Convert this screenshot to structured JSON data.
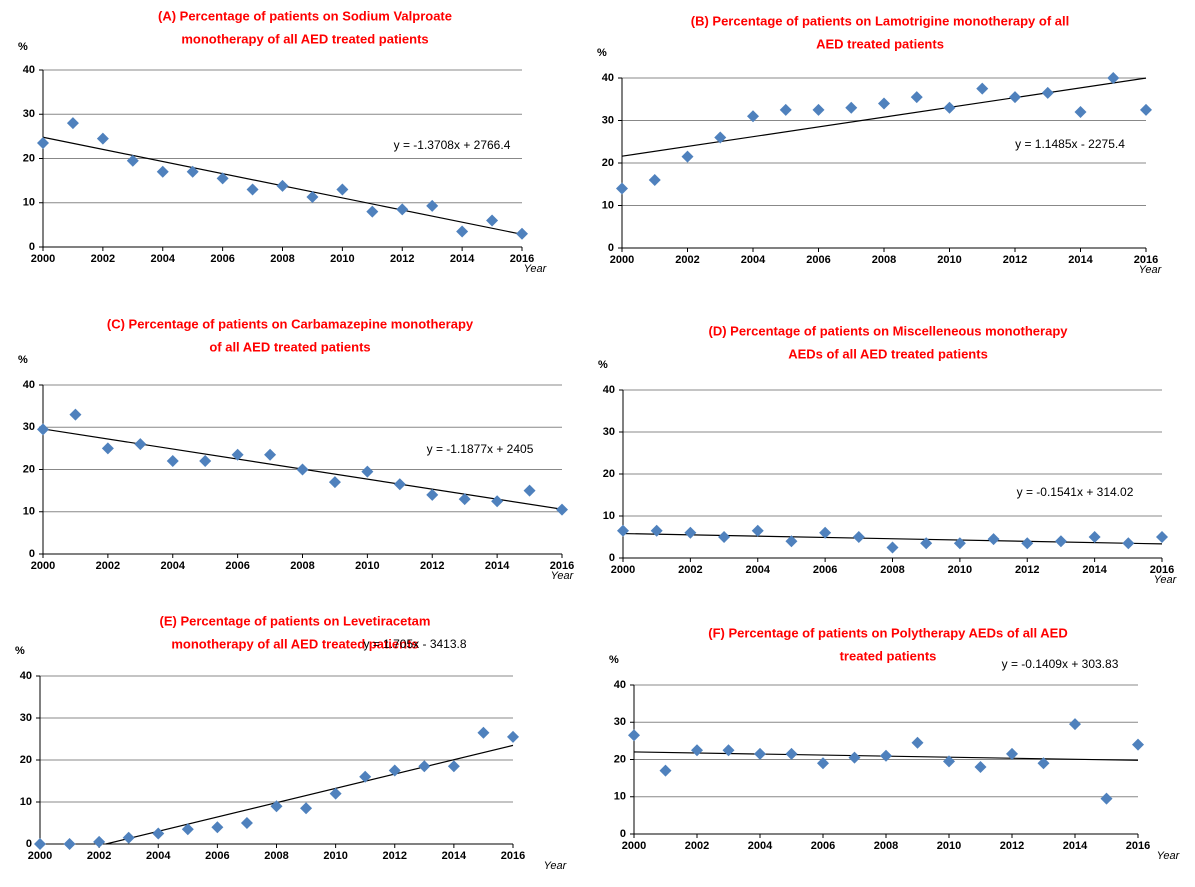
{
  "chart_data": [
    {
      "type": "scatter",
      "title": [
        "(A) Percentage  of patients on Sodium Valproate",
        "monotherapy of all AED treated patients"
      ],
      "y_label": "%",
      "x_label": "Year",
      "x": [
        2000,
        2001,
        2002,
        2003,
        2004,
        2005,
        2006,
        2007,
        2008,
        2009,
        2010,
        2011,
        2012,
        2013,
        2014,
        2015,
        2016
      ],
      "values": [
        23.5,
        28,
        24.5,
        19.5,
        17,
        17,
        15.5,
        13,
        13.8,
        11.3,
        13,
        8,
        8.5,
        9.3,
        3.5,
        6,
        3
      ],
      "color": "#4f81bd",
      "xlim": [
        2000,
        2016
      ],
      "ylim": [
        0,
        40
      ],
      "xticks": [
        2000,
        2002,
        2004,
        2006,
        2008,
        2010,
        2012,
        2014,
        2016
      ],
      "yticks": [
        0,
        10,
        20,
        30,
        40
      ],
      "grid": true,
      "trendline": {
        "slope": -1.3708,
        "intercept": 2766.4,
        "label": "y = -1.3708x + 2766.4",
        "color": "#000000"
      }
    },
    {
      "type": "scatter",
      "title": [
        "(B) Percentage of patients on Lamotrigine monotherapy of all",
        "AED treated patients"
      ],
      "y_label": "%",
      "x_label": "Year",
      "x": [
        2000,
        2001,
        2002,
        2003,
        2004,
        2005,
        2006,
        2007,
        2008,
        2009,
        2010,
        2011,
        2012,
        2013,
        2014,
        2015,
        2016
      ],
      "values": [
        14,
        16,
        21.5,
        26,
        31,
        32.5,
        32.5,
        33,
        34,
        35.5,
        33,
        37.5,
        35.5,
        36.5,
        32,
        40,
        32.5
      ],
      "color": "#4f81bd",
      "xlim": [
        2000,
        2016
      ],
      "ylim": [
        0,
        40
      ],
      "xticks": [
        2000,
        2002,
        2004,
        2006,
        2008,
        2010,
        2012,
        2014,
        2016
      ],
      "yticks": [
        0,
        10,
        20,
        30,
        40
      ],
      "grid": true,
      "trendline": {
        "slope": 1.1485,
        "intercept": -2275.4,
        "label": "y = 1.1485x - 2275.4",
        "color": "#000000"
      }
    },
    {
      "type": "scatter",
      "title": [
        "(C)  Percentage of patients on Carbamazepine monotherapy",
        "of all AED treated patients"
      ],
      "y_label": "%",
      "x_label": "Year",
      "x": [
        2000,
        2001,
        2002,
        2003,
        2004,
        2005,
        2006,
        2007,
        2008,
        2009,
        2010,
        2011,
        2012,
        2013,
        2014,
        2015,
        2016
      ],
      "values": [
        29.5,
        33,
        25,
        26,
        22,
        22,
        23.5,
        23.5,
        20,
        17,
        19.5,
        16.5,
        14,
        13,
        12.5,
        15,
        10.5
      ],
      "color": "#4f81bd",
      "xlim": [
        2000,
        2016
      ],
      "ylim": [
        0,
        40
      ],
      "xticks": [
        2000,
        2002,
        2004,
        2006,
        2008,
        2010,
        2012,
        2014,
        2016
      ],
      "yticks": [
        0,
        10,
        20,
        30,
        40
      ],
      "grid": true,
      "trendline": {
        "slope": -1.1877,
        "intercept": 2405,
        "label": "y = -1.1877x + 2405",
        "color": "#000000"
      }
    },
    {
      "type": "scatter",
      "title": [
        "(D) Percentage of patients on Miscelleneous monotherapy",
        "AEDs of all AED treated patients"
      ],
      "y_label": "%",
      "x_label": "Year",
      "x": [
        2000,
        2001,
        2002,
        2003,
        2004,
        2005,
        2006,
        2007,
        2008,
        2009,
        2010,
        2011,
        2012,
        2013,
        2014,
        2015,
        2016
      ],
      "values": [
        6.5,
        6.5,
        6,
        5,
        6.5,
        4,
        6,
        5,
        2.5,
        3.5,
        3.5,
        4.5,
        3.5,
        4,
        5,
        3.5,
        5
      ],
      "color": "#4f81bd",
      "xlim": [
        2000,
        2016
      ],
      "ylim": [
        0,
        40
      ],
      "xticks": [
        2000,
        2002,
        2004,
        2006,
        2008,
        2010,
        2012,
        2014,
        2016
      ],
      "yticks": [
        0,
        10,
        20,
        30,
        40
      ],
      "grid": true,
      "trendline": {
        "slope": -0.1541,
        "intercept": 314.02,
        "label": "y = -0.1541x + 314.02",
        "color": "#000000"
      }
    },
    {
      "type": "scatter",
      "title": [
        "(E) Percentage of patients on Levetiracetam",
        "monotherapy of all AED treated patients"
      ],
      "y_label": "%",
      "x_label": "Year",
      "x": [
        2000,
        2001,
        2002,
        2003,
        2004,
        2005,
        2006,
        2007,
        2008,
        2009,
        2010,
        2011,
        2012,
        2013,
        2014,
        2015,
        2016
      ],
      "values": [
        0,
        0,
        0.5,
        1.5,
        2.5,
        3.5,
        4,
        5,
        9,
        8.5,
        12,
        16,
        17.5,
        18.5,
        18.5,
        26.5,
        25.5
      ],
      "color": "#4f81bd",
      "xlim": [
        2000,
        2016
      ],
      "ylim": [
        0,
        40
      ],
      "xticks": [
        2000,
        2002,
        2004,
        2006,
        2008,
        2010,
        2012,
        2014,
        2016
      ],
      "yticks": [
        0,
        10,
        20,
        30,
        40
      ],
      "grid": true,
      "trendline": {
        "slope": 1.705,
        "intercept": -3413.8,
        "label": "y = 1.705x - 3413.8",
        "color": "#000000"
      }
    },
    {
      "type": "scatter",
      "title": [
        "(F) Percentage of patients on Polytherapy AEDs of all AED",
        "treated patients"
      ],
      "y_label": "%",
      "x_label": "Year",
      "x": [
        2000,
        2001,
        2002,
        2003,
        2004,
        2005,
        2006,
        2007,
        2008,
        2009,
        2010,
        2011,
        2012,
        2013,
        2014,
        2015,
        2016
      ],
      "values": [
        26.5,
        17,
        22.5,
        22.5,
        21.5,
        21.5,
        19,
        20.5,
        21,
        24.5,
        19.5,
        18,
        21.5,
        19,
        29.5,
        9.5,
        24
      ],
      "color": "#4f81bd",
      "xlim": [
        2000,
        2016
      ],
      "ylim": [
        0,
        40
      ],
      "xticks": [
        2000,
        2002,
        2004,
        2006,
        2008,
        2010,
        2012,
        2014,
        2016
      ],
      "yticks": [
        0,
        10,
        20,
        30,
        40
      ],
      "grid": true,
      "trendline": {
        "slope": -0.1409,
        "intercept": 303.83,
        "label": "y = -0.1409x + 303.83",
        "color": "#000000"
      }
    }
  ]
}
